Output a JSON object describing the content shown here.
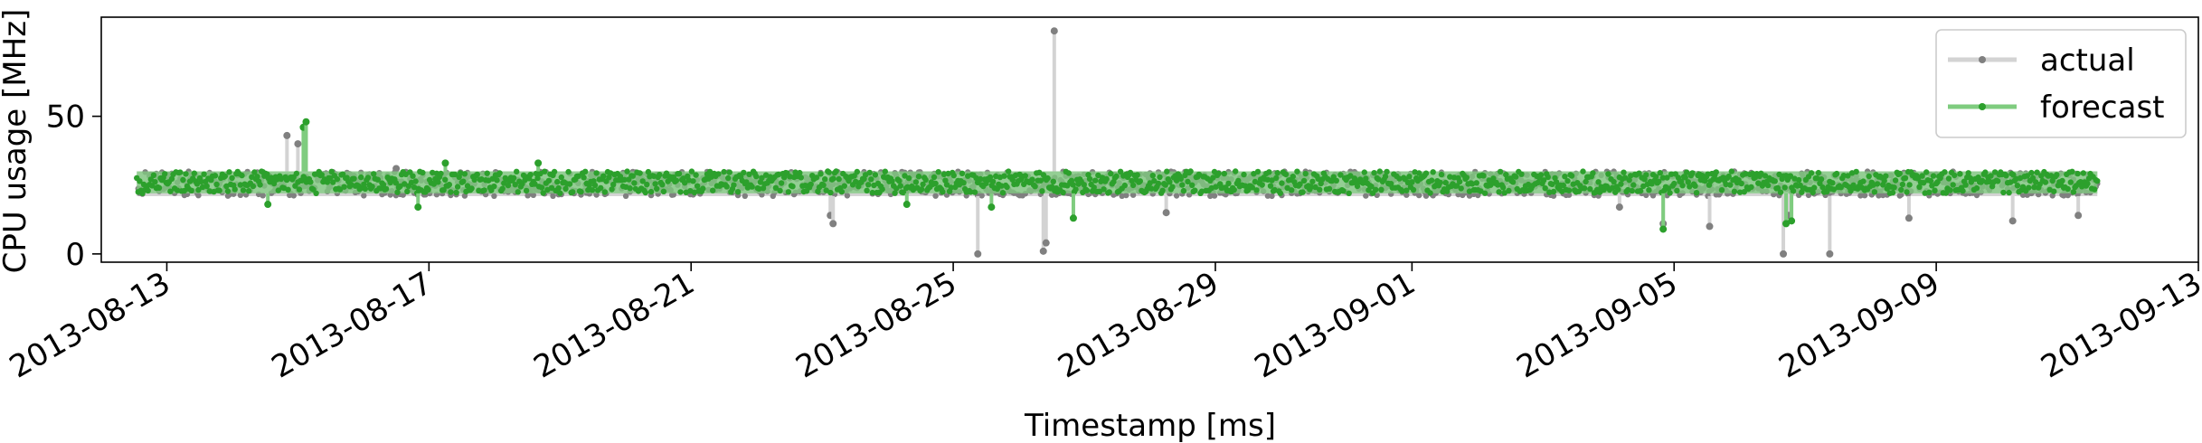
{
  "chart_data": {
    "type": "line",
    "title": "",
    "xlabel": "Timestamp [ms]",
    "ylabel": "CPU usage [MHz]",
    "x_start": "2013-08-12T00:00:00",
    "x_end": "2013-09-13T00:00:00",
    "ylim": [
      -3,
      86
    ],
    "x_ticks": [
      "2013-08-13",
      "2013-08-17",
      "2013-08-21",
      "2013-08-25",
      "2013-08-29",
      "2013-09-01",
      "2013-09-05",
      "2013-09-09",
      "2013-09-13"
    ],
    "y_ticks": [
      0,
      50
    ],
    "grid": false,
    "legend_placement": "top-right",
    "series": [
      {
        "name": "actual",
        "color": "#808080",
        "line_color": "#d3d3d3",
        "band": {
          "start": "2013-08-12T13:00:00",
          "end": "2013-09-11T11:00:00",
          "low": 21,
          "high": 30
        },
        "outliers": [
          {
            "x": "2013-08-14T20:00:00",
            "y": 43
          },
          {
            "x": "2013-08-15T00:00:00",
            "y": 40
          },
          {
            "x": "2013-08-16T12:00:00",
            "y": 31
          },
          {
            "x": "2013-08-23T03:00:00",
            "y": 14
          },
          {
            "x": "2013-08-23T04:00:00",
            "y": 11
          },
          {
            "x": "2013-08-25T09:00:00",
            "y": 0
          },
          {
            "x": "2013-08-26T09:00:00",
            "y": 1
          },
          {
            "x": "2013-08-26T10:00:00",
            "y": 4
          },
          {
            "x": "2013-08-26T13:00:00",
            "y": 81
          },
          {
            "x": "2013-08-28T06:00:00",
            "y": 15
          },
          {
            "x": "2013-09-04T04:00:00",
            "y": 17
          },
          {
            "x": "2013-09-04T20:00:00",
            "y": 11
          },
          {
            "x": "2013-09-05T13:00:00",
            "y": 10
          },
          {
            "x": "2013-09-06T16:00:00",
            "y": 0
          },
          {
            "x": "2013-09-06T18:00:00",
            "y": 14
          },
          {
            "x": "2013-09-07T09:00:00",
            "y": 0
          },
          {
            "x": "2013-09-08T14:00:00",
            "y": 13
          },
          {
            "x": "2013-09-10T04:00:00",
            "y": 12
          },
          {
            "x": "2013-09-11T04:00:00",
            "y": 14
          }
        ]
      },
      {
        "name": "forecast",
        "color": "#2ca02c",
        "line_color": "#7fcc7f",
        "band": {
          "start": "2013-08-12T13:00:00",
          "end": "2013-09-11T11:00:00",
          "low": 22,
          "high": 30
        },
        "outliers": [
          {
            "x": "2013-08-14T13:00:00",
            "y": 18
          },
          {
            "x": "2013-08-15T02:00:00",
            "y": 46
          },
          {
            "x": "2013-08-15T03:00:00",
            "y": 48
          },
          {
            "x": "2013-08-16T20:00:00",
            "y": 17
          },
          {
            "x": "2013-08-17T06:00:00",
            "y": 33
          },
          {
            "x": "2013-08-18T16:00:00",
            "y": 33
          },
          {
            "x": "2013-08-24T07:00:00",
            "y": 18
          },
          {
            "x": "2013-08-25T14:00:00",
            "y": 17
          },
          {
            "x": "2013-08-26T20:00:00",
            "y": 13
          },
          {
            "x": "2013-09-04T20:00:00",
            "y": 9
          },
          {
            "x": "2013-09-06T17:00:00",
            "y": 11
          },
          {
            "x": "2013-09-06T19:00:00",
            "y": 12
          }
        ]
      }
    ]
  }
}
